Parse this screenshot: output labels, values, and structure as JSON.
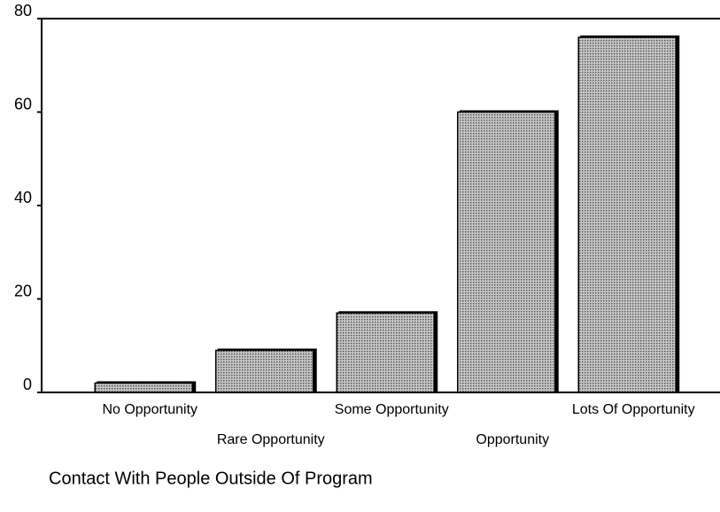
{
  "chart_data": {
    "type": "bar",
    "x_label": "Contact With People Outside Of Program",
    "categories": [
      "No Opportunity",
      "Rare Opportunity",
      "Some Opportunity",
      "Opportunity",
      "Lots Of Opportunity"
    ],
    "values": [
      2,
      9,
      17,
      60,
      76
    ],
    "color": "#9a9a9a",
    "ylim": [
      0,
      80
    ],
    "yticks": [
      0,
      20,
      40,
      60,
      80
    ],
    "grid": false
  }
}
